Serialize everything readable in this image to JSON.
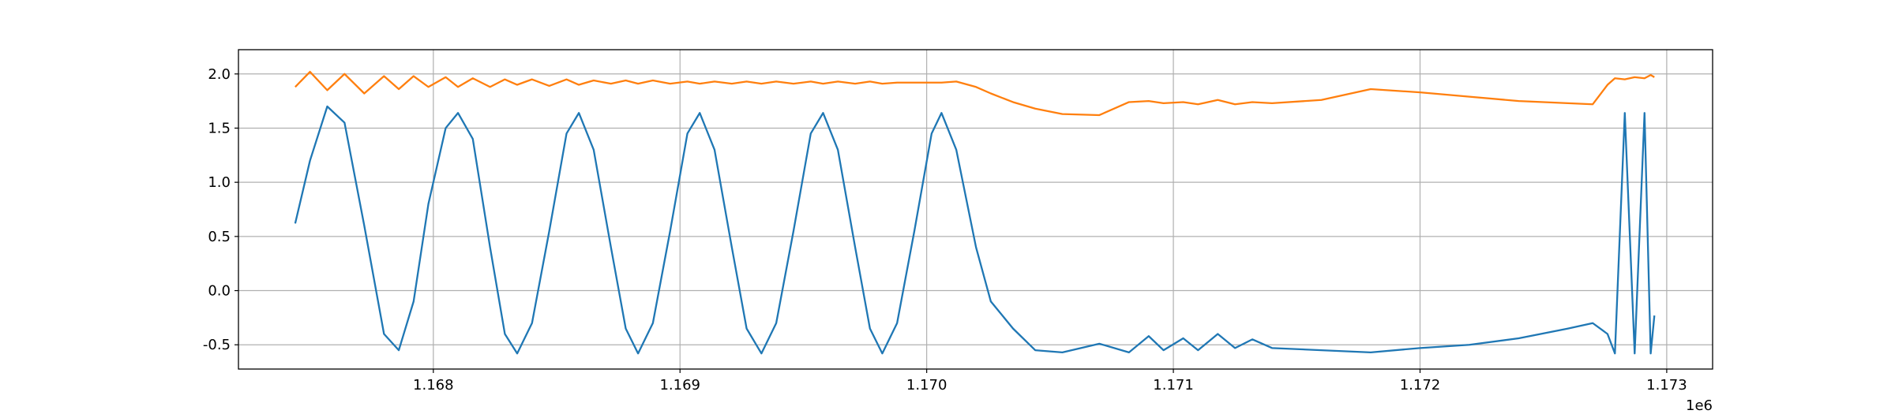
{
  "chart_data": {
    "type": "line",
    "x": [
      1167440,
      1167500,
      1167570,
      1167640,
      1167720,
      1167800,
      1167860,
      1167920,
      1167980,
      1168050,
      1168100,
      1168160,
      1168230,
      1168290,
      1168340,
      1168400,
      1168470,
      1168540,
      1168590,
      1168650,
      1168720,
      1168780,
      1168830,
      1168890,
      1168960,
      1169030,
      1169080,
      1169140,
      1169210,
      1169270,
      1169330,
      1169390,
      1169460,
      1169530,
      1169580,
      1169640,
      1169710,
      1169770,
      1169820,
      1169880,
      1169950,
      1170020,
      1170060,
      1170120,
      1170200,
      1170260,
      1170350,
      1170440,
      1170550,
      1170700,
      1170820,
      1170900,
      1170960,
      1171040,
      1171100,
      1171180,
      1171250,
      1171320,
      1171400,
      1171600,
      1171800,
      1172000,
      1172200,
      1172400,
      1172600,
      1172700,
      1172760,
      1172790,
      1172830,
      1172870,
      1172910,
      1172935,
      1172950
    ],
    "series": [
      {
        "color": "#1f77b4",
        "values": [
          0.62,
          1.2,
          1.7,
          1.55,
          0.6,
          -0.4,
          -0.55,
          -0.1,
          0.8,
          1.5,
          1.64,
          1.4,
          0.4,
          -0.4,
          -0.58,
          -0.3,
          0.55,
          1.45,
          1.64,
          1.3,
          0.4,
          -0.35,
          -0.58,
          -0.3,
          0.55,
          1.45,
          1.64,
          1.3,
          0.4,
          -0.35,
          -0.58,
          -0.3,
          0.55,
          1.45,
          1.64,
          1.3,
          0.4,
          -0.35,
          -0.58,
          -0.3,
          0.55,
          1.45,
          1.64,
          1.3,
          0.4,
          -0.1,
          -0.35,
          -0.55,
          -0.57,
          -0.49,
          -0.57,
          -0.42,
          -0.55,
          -0.44,
          -0.55,
          -0.4,
          -0.53,
          -0.45,
          -0.53,
          -0.55,
          -0.57,
          -0.53,
          -0.5,
          -0.44,
          -0.35,
          -0.3,
          -0.4,
          -0.58,
          1.64,
          -0.58,
          1.64,
          -0.58,
          -0.23
        ]
      },
      {
        "color": "#ff7f0e",
        "values": [
          1.88,
          2.02,
          1.85,
          2.0,
          1.82,
          1.98,
          1.86,
          1.98,
          1.88,
          1.97,
          1.88,
          1.96,
          1.88,
          1.95,
          1.9,
          1.95,
          1.89,
          1.95,
          1.9,
          1.94,
          1.91,
          1.94,
          1.91,
          1.94,
          1.91,
          1.93,
          1.91,
          1.93,
          1.91,
          1.93,
          1.91,
          1.93,
          1.91,
          1.93,
          1.91,
          1.93,
          1.91,
          1.93,
          1.91,
          1.92,
          1.92,
          1.92,
          1.92,
          1.93,
          1.88,
          1.82,
          1.74,
          1.68,
          1.63,
          1.62,
          1.74,
          1.75,
          1.73,
          1.74,
          1.72,
          1.76,
          1.72,
          1.74,
          1.73,
          1.76,
          1.86,
          1.83,
          1.79,
          1.75,
          1.73,
          1.72,
          1.9,
          1.96,
          1.95,
          1.97,
          1.96,
          1.99,
          1.97
        ]
      }
    ],
    "xlim": [
      1167210,
      1173186
    ],
    "xticks": [
      {
        "value": 1168000,
        "label": "1.168"
      },
      {
        "value": 1169000,
        "label": "1.169"
      },
      {
        "value": 1170000,
        "label": "1.170"
      },
      {
        "value": 1171000,
        "label": "1.171"
      },
      {
        "value": 1172000,
        "label": "1.172"
      },
      {
        "value": 1173000,
        "label": "1.173"
      }
    ],
    "x_offset_label": "1e6",
    "ylim": [
      -0.724,
      2.224
    ],
    "yticks": [
      -0.5,
      {
        "value": 0,
        "label": "0.0"
      },
      0.5,
      {
        "value": 1,
        "label": "1.0"
      },
      1.5,
      {
        "value": 2,
        "label": "2.0"
      }
    ],
    "grid": true
  }
}
